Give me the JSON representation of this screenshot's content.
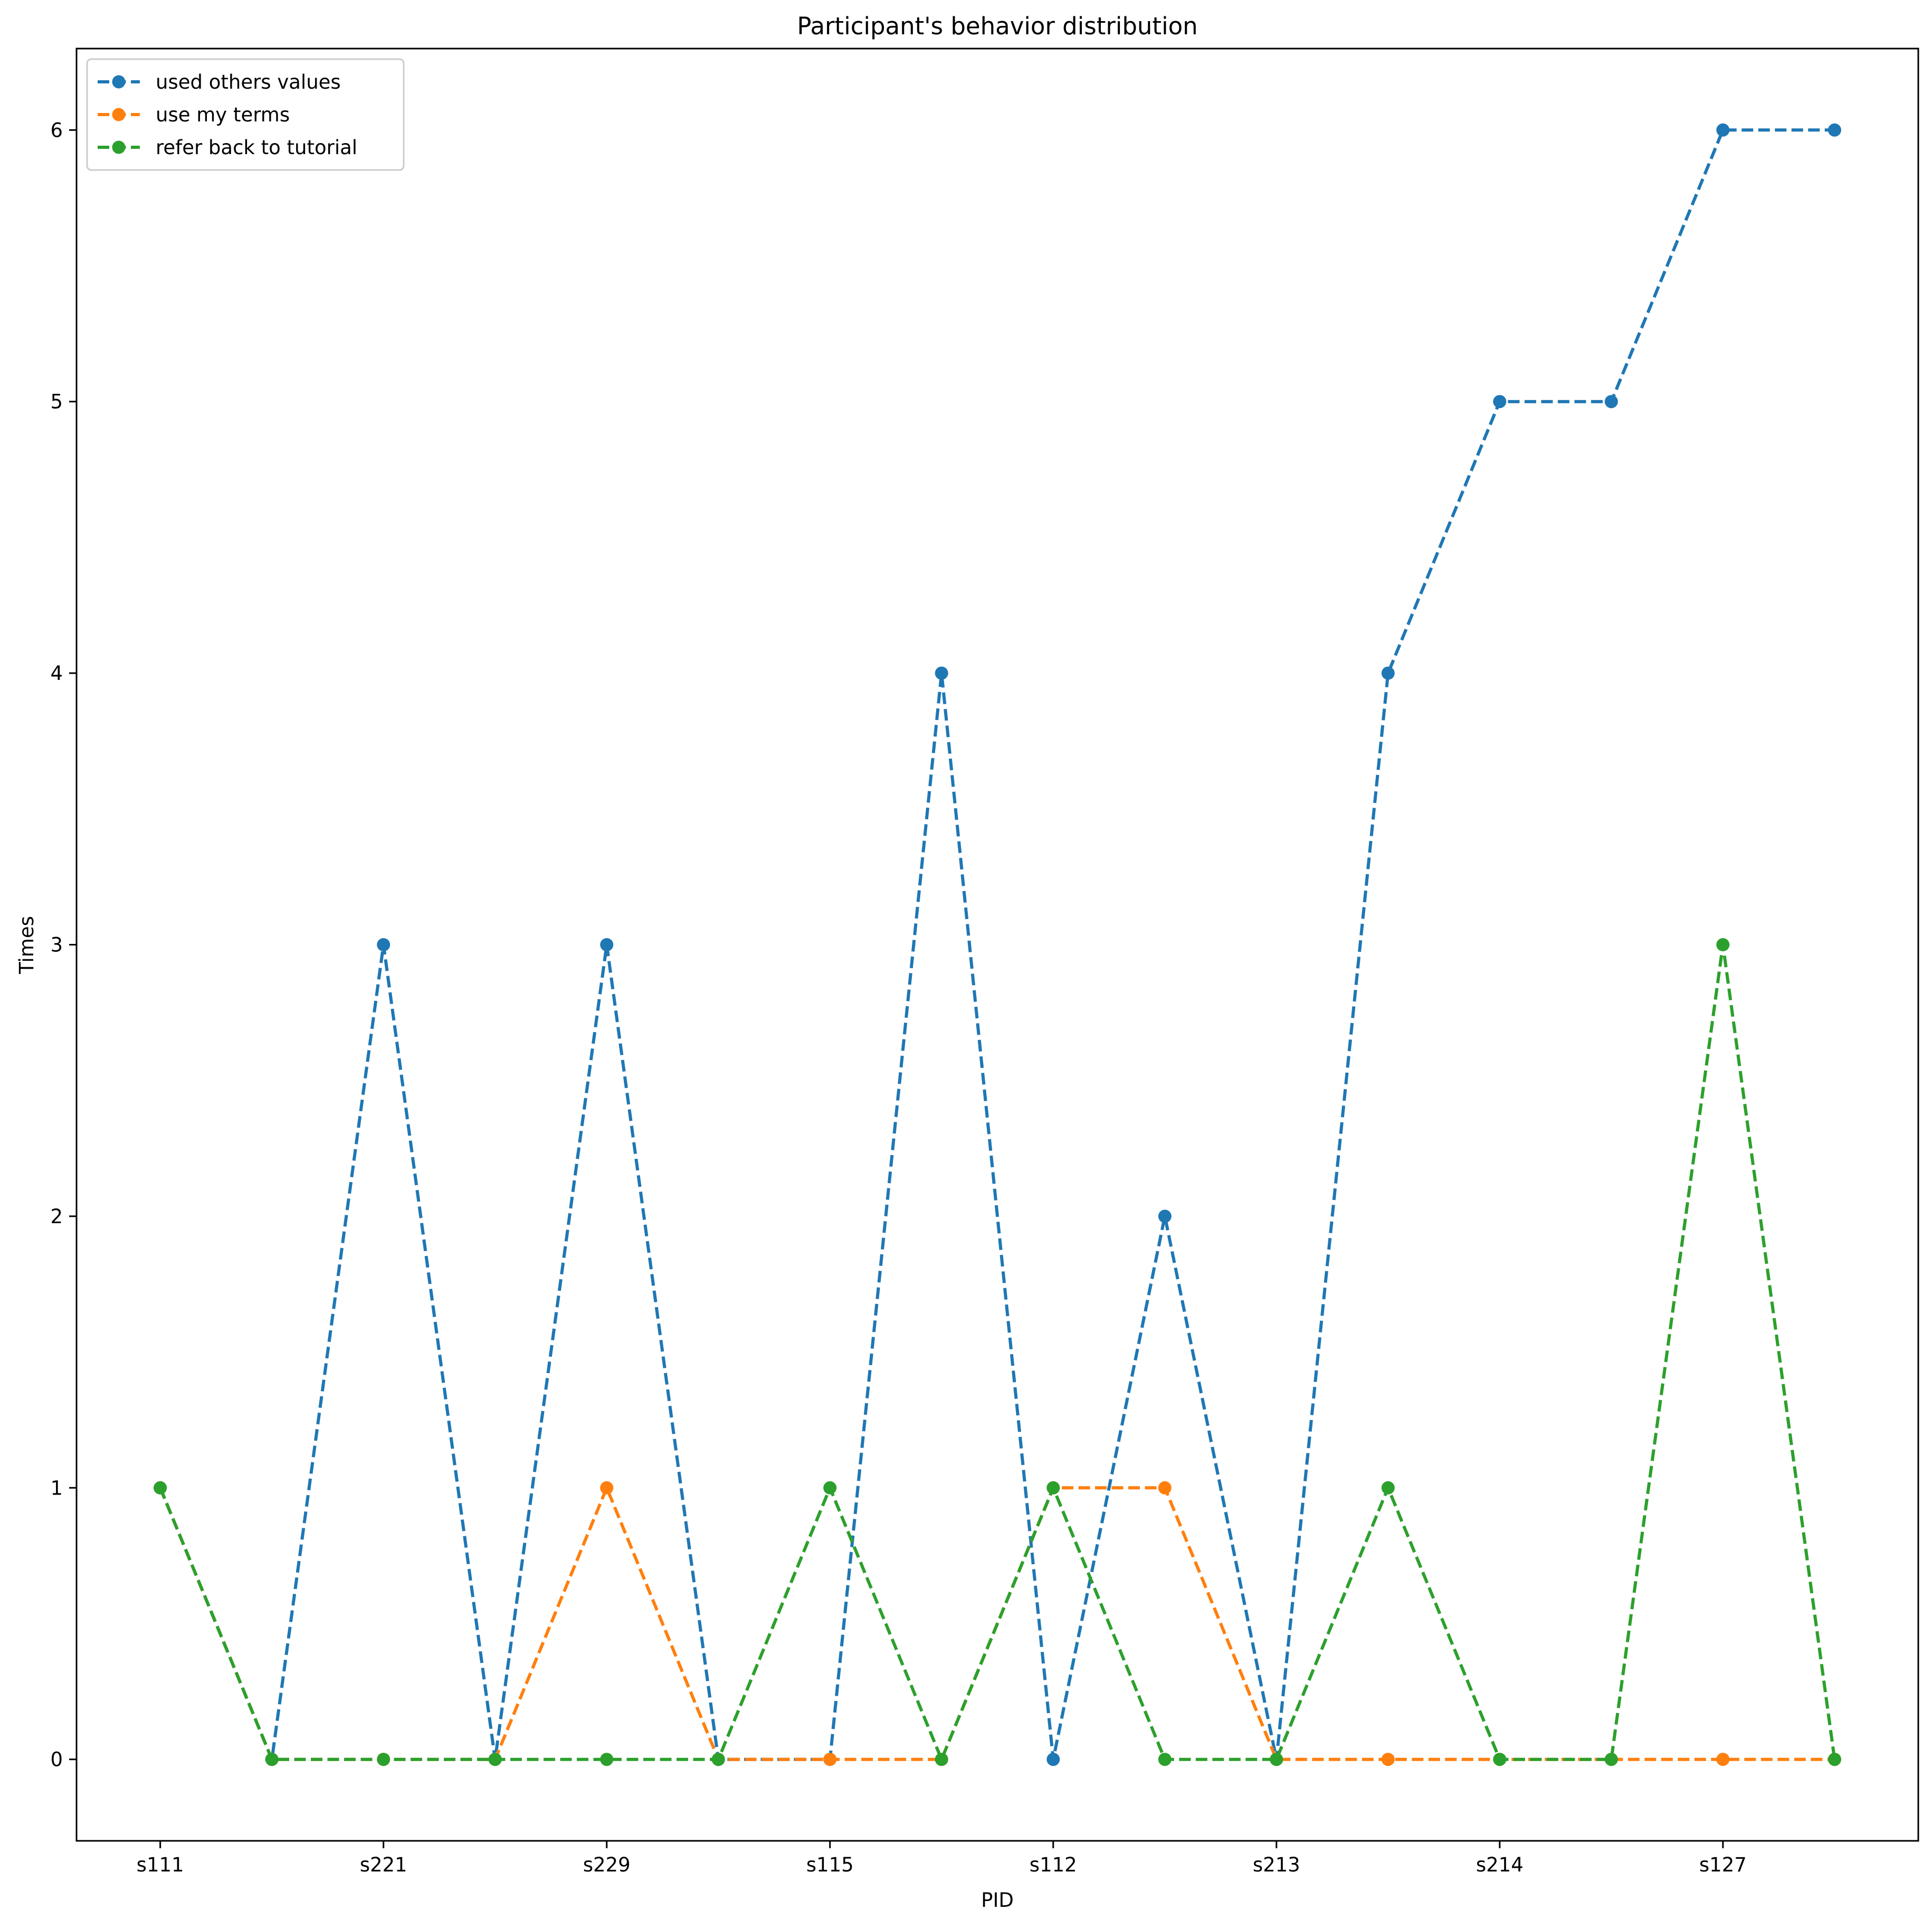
{
  "chart_data": {
    "type": "line",
    "title": "Participant's behavior distribution",
    "xlabel": "PID",
    "ylabel": "Times",
    "x_tick_labels": [
      "s111",
      "s221",
      "s229",
      "s115",
      "s112",
      "s213",
      "s214",
      "s127"
    ],
    "x_tick_positions": [
      0,
      2,
      4,
      6,
      8,
      10,
      12,
      14
    ],
    "x": [
      0,
      1,
      2,
      3,
      4,
      5,
      6,
      7,
      8,
      9,
      10,
      11,
      12,
      13,
      14,
      15
    ],
    "xlim": [
      -0.75,
      15.75
    ],
    "ylim": [
      -0.3,
      6.3
    ],
    "y_ticks": [
      "0",
      "1",
      "2",
      "3",
      "4",
      "5",
      "6"
    ],
    "grid": false,
    "legend_position": "upper-left",
    "line_style": "dashed",
    "marker": "circle",
    "series": [
      {
        "name": "used others values",
        "color": "#1f77b4",
        "values": [
          1,
          0,
          3,
          0,
          3,
          0,
          0,
          4,
          0,
          2,
          0,
          4,
          5,
          5,
          6,
          6
        ]
      },
      {
        "name": "use my terms",
        "color": "#ff7f0e",
        "values": [
          1,
          0,
          0,
          0,
          1,
          0,
          0,
          0,
          1,
          1,
          0,
          0,
          0,
          0,
          0,
          0
        ]
      },
      {
        "name": "refer back to tutorial",
        "color": "#2ca02c",
        "values": [
          1,
          0,
          0,
          0,
          0,
          0,
          1,
          0,
          1,
          0,
          0,
          1,
          0,
          0,
          3,
          0
        ]
      }
    ]
  }
}
